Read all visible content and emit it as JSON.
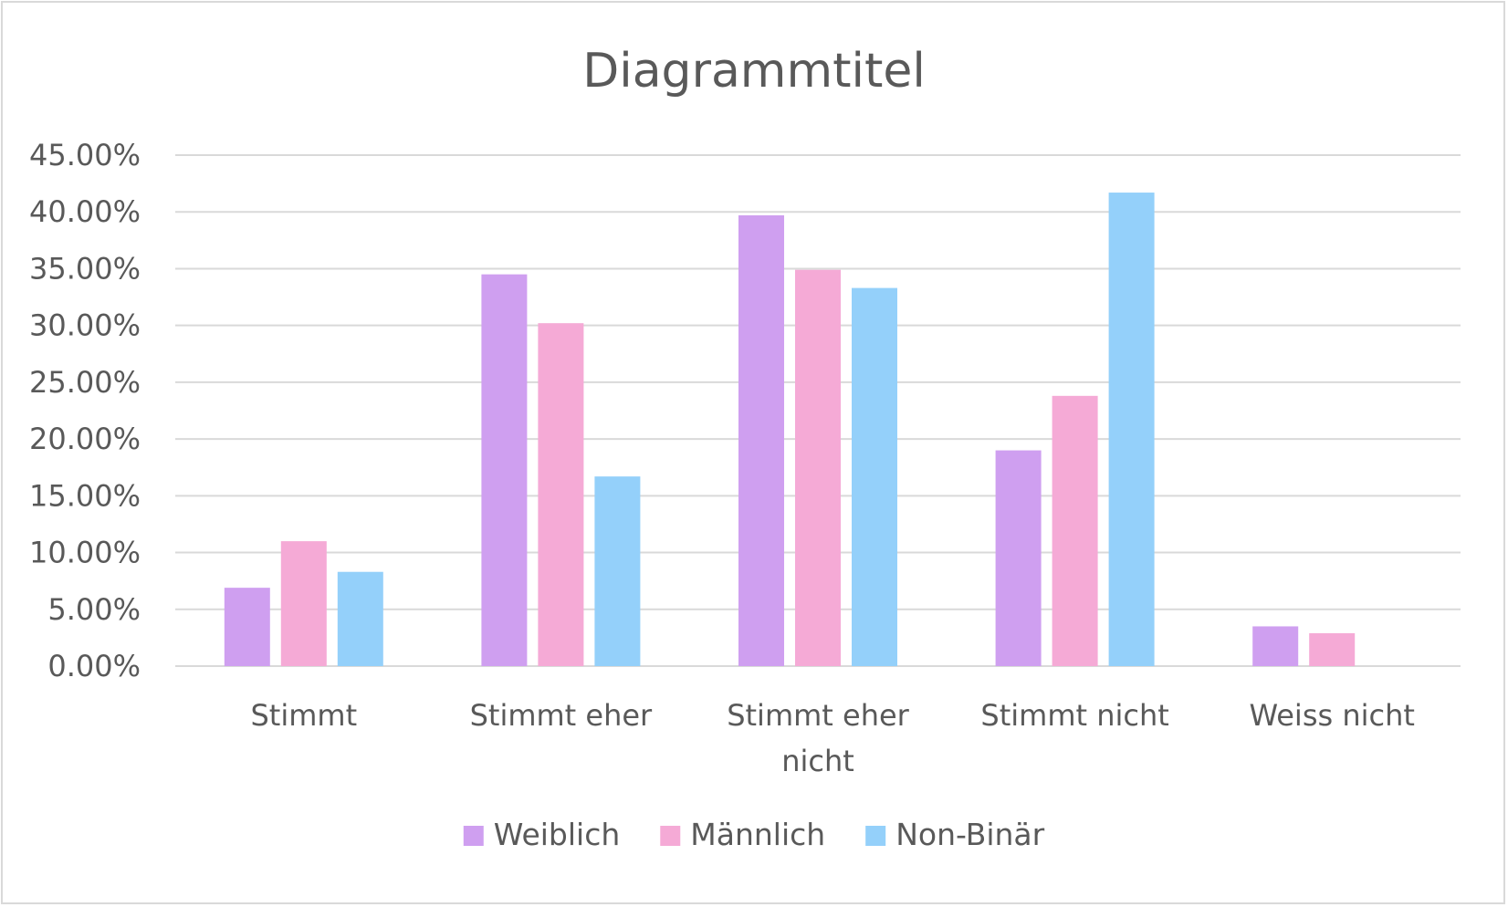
{
  "chart_data": {
    "type": "bar",
    "title": "Diagrammtitel",
    "categories": [
      [
        "Stimmt"
      ],
      [
        "Stimmt eher"
      ],
      [
        "Stimmt eher",
        "nicht"
      ],
      [
        "Stimmt nicht"
      ],
      [
        "Weiss nicht"
      ]
    ],
    "series": [
      {
        "name": "Weiblich",
        "color": "#cf9ff0",
        "values": [
          6.9,
          34.5,
          39.7,
          19.0,
          3.5
        ]
      },
      {
        "name": "Männlich",
        "color": "#f5aad6",
        "values": [
          11.0,
          30.2,
          34.9,
          23.8,
          2.9
        ]
      },
      {
        "name": "Non-Binär",
        "color": "#94d0fa",
        "values": [
          8.3,
          16.7,
          33.3,
          41.7,
          0.0
        ]
      }
    ],
    "yticks": [
      "0.00%",
      "5.00%",
      "10.00%",
      "15.00%",
      "20.00%",
      "25.00%",
      "30.00%",
      "35.00%",
      "40.00%",
      "45.00%"
    ],
    "ylim": [
      0,
      45
    ],
    "grid": true,
    "legend_position": "bottom",
    "gridline_color": "#d9d9d9"
  }
}
